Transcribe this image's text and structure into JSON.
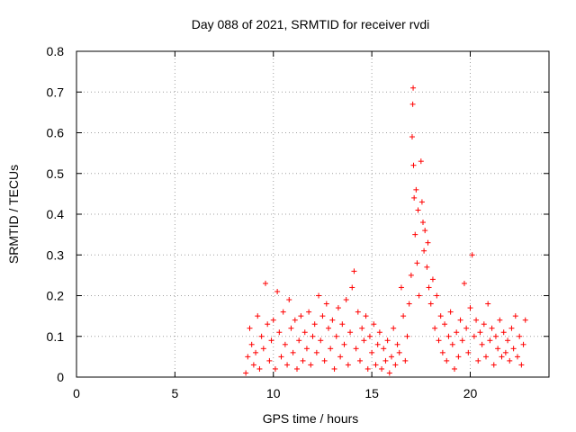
{
  "chart_data": {
    "type": "scatter",
    "title": "Day 088 of 2021, SRMTID for receiver rvdi",
    "xlabel": "GPS time / hours",
    "ylabel": "SRMTID / TECUs",
    "xlim": [
      0,
      24
    ],
    "ylim": [
      0,
      0.8
    ],
    "x_ticks": [
      0,
      5,
      10,
      15,
      20
    ],
    "y_ticks": [
      0,
      0.1,
      0.2,
      0.3,
      0.4,
      0.5,
      0.6,
      0.7,
      0.8
    ],
    "x_tick_labels": [
      "0",
      "5",
      "10",
      "15",
      "20"
    ],
    "y_tick_labels": [
      "0",
      "0.1",
      "0.2",
      "0.3",
      "0.4",
      "0.5",
      "0.6",
      "0.7",
      "0.8"
    ],
    "grid": true,
    "marker": "+",
    "series": [
      {
        "name": "SRMTID",
        "color": "#ff0000",
        "points": [
          [
            8.6,
            0.01
          ],
          [
            8.7,
            0.05
          ],
          [
            8.8,
            0.12
          ],
          [
            8.9,
            0.08
          ],
          [
            9.0,
            0.03
          ],
          [
            9.1,
            0.06
          ],
          [
            9.2,
            0.15
          ],
          [
            9.3,
            0.02
          ],
          [
            9.4,
            0.1
          ],
          [
            9.5,
            0.07
          ],
          [
            9.6,
            0.23
          ],
          [
            9.7,
            0.13
          ],
          [
            9.8,
            0.04
          ],
          [
            9.9,
            0.09
          ],
          [
            10.0,
            0.14
          ],
          [
            10.1,
            0.02
          ],
          [
            10.2,
            0.21
          ],
          [
            10.3,
            0.11
          ],
          [
            10.4,
            0.05
          ],
          [
            10.5,
            0.16
          ],
          [
            10.6,
            0.08
          ],
          [
            10.7,
            0.03
          ],
          [
            10.8,
            0.19
          ],
          [
            10.9,
            0.12
          ],
          [
            11.0,
            0.06
          ],
          [
            11.1,
            0.14
          ],
          [
            11.2,
            0.02
          ],
          [
            11.3,
            0.09
          ],
          [
            11.4,
            0.15
          ],
          [
            11.5,
            0.04
          ],
          [
            11.6,
            0.11
          ],
          [
            11.7,
            0.07
          ],
          [
            11.8,
            0.16
          ],
          [
            11.9,
            0.03
          ],
          [
            12.0,
            0.1
          ],
          [
            12.1,
            0.13
          ],
          [
            12.2,
            0.06
          ],
          [
            12.3,
            0.2
          ],
          [
            12.4,
            0.09
          ],
          [
            12.5,
            0.15
          ],
          [
            12.6,
            0.04
          ],
          [
            12.7,
            0.18
          ],
          [
            12.8,
            0.12
          ],
          [
            12.9,
            0.07
          ],
          [
            13.0,
            0.14
          ],
          [
            13.1,
            0.02
          ],
          [
            13.2,
            0.1
          ],
          [
            13.3,
            0.17
          ],
          [
            13.4,
            0.05
          ],
          [
            13.5,
            0.13
          ],
          [
            13.6,
            0.08
          ],
          [
            13.7,
            0.19
          ],
          [
            13.8,
            0.03
          ],
          [
            13.9,
            0.11
          ],
          [
            14.0,
            0.22
          ],
          [
            14.1,
            0.26
          ],
          [
            14.2,
            0.07
          ],
          [
            14.3,
            0.16
          ],
          [
            14.4,
            0.04
          ],
          [
            14.5,
            0.12
          ],
          [
            14.6,
            0.09
          ],
          [
            14.7,
            0.15
          ],
          [
            14.8,
            0.02
          ],
          [
            14.9,
            0.1
          ],
          [
            15.0,
            0.06
          ],
          [
            15.1,
            0.13
          ],
          [
            15.2,
            0.03
          ],
          [
            15.3,
            0.08
          ],
          [
            15.4,
            0.11
          ],
          [
            15.5,
            0.02
          ],
          [
            15.6,
            0.07
          ],
          [
            15.7,
            0.04
          ],
          [
            15.8,
            0.09
          ],
          [
            15.9,
            0.01
          ],
          [
            16.0,
            0.05
          ],
          [
            16.1,
            0.12
          ],
          [
            16.2,
            0.03
          ],
          [
            16.3,
            0.08
          ],
          [
            16.4,
            0.06
          ],
          [
            16.5,
            0.22
          ],
          [
            16.6,
            0.15
          ],
          [
            16.7,
            0.04
          ],
          [
            16.8,
            0.1
          ],
          [
            16.9,
            0.18
          ],
          [
            17.0,
            0.25
          ],
          [
            17.05,
            0.59
          ],
          [
            17.08,
            0.67
          ],
          [
            17.1,
            0.71
          ],
          [
            17.12,
            0.52
          ],
          [
            17.15,
            0.44
          ],
          [
            17.2,
            0.35
          ],
          [
            17.25,
            0.46
          ],
          [
            17.3,
            0.28
          ],
          [
            17.35,
            0.41
          ],
          [
            17.4,
            0.2
          ],
          [
            17.5,
            0.53
          ],
          [
            17.55,
            0.43
          ],
          [
            17.6,
            0.38
          ],
          [
            17.65,
            0.31
          ],
          [
            17.7,
            0.36
          ],
          [
            17.8,
            0.27
          ],
          [
            17.85,
            0.33
          ],
          [
            17.9,
            0.22
          ],
          [
            18.0,
            0.18
          ],
          [
            18.1,
            0.24
          ],
          [
            18.2,
            0.12
          ],
          [
            18.3,
            0.2
          ],
          [
            18.4,
            0.09
          ],
          [
            18.5,
            0.15
          ],
          [
            18.6,
            0.06
          ],
          [
            18.7,
            0.13
          ],
          [
            18.8,
            0.04
          ],
          [
            18.9,
            0.1
          ],
          [
            19.0,
            0.16
          ],
          [
            19.1,
            0.08
          ],
          [
            19.2,
            0.02
          ],
          [
            19.3,
            0.11
          ],
          [
            19.4,
            0.05
          ],
          [
            19.5,
            0.14
          ],
          [
            19.6,
            0.09
          ],
          [
            19.7,
            0.23
          ],
          [
            19.8,
            0.12
          ],
          [
            19.9,
            0.06
          ],
          [
            20.0,
            0.17
          ],
          [
            20.1,
            0.3
          ],
          [
            20.2,
            0.1
          ],
          [
            20.3,
            0.14
          ],
          [
            20.4,
            0.04
          ],
          [
            20.5,
            0.11
          ],
          [
            20.6,
            0.08
          ],
          [
            20.7,
            0.13
          ],
          [
            20.8,
            0.05
          ],
          [
            20.9,
            0.18
          ],
          [
            21.0,
            0.09
          ],
          [
            21.1,
            0.12
          ],
          [
            21.2,
            0.03
          ],
          [
            21.3,
            0.1
          ],
          [
            21.4,
            0.07
          ],
          [
            21.5,
            0.14
          ],
          [
            21.6,
            0.05
          ],
          [
            21.7,
            0.11
          ],
          [
            21.8,
            0.06
          ],
          [
            21.9,
            0.09
          ],
          [
            22.0,
            0.04
          ],
          [
            22.1,
            0.12
          ],
          [
            22.2,
            0.07
          ],
          [
            22.3,
            0.15
          ],
          [
            22.4,
            0.05
          ],
          [
            22.5,
            0.1
          ],
          [
            22.6,
            0.03
          ],
          [
            22.7,
            0.08
          ],
          [
            22.8,
            0.14
          ]
        ]
      }
    ]
  }
}
